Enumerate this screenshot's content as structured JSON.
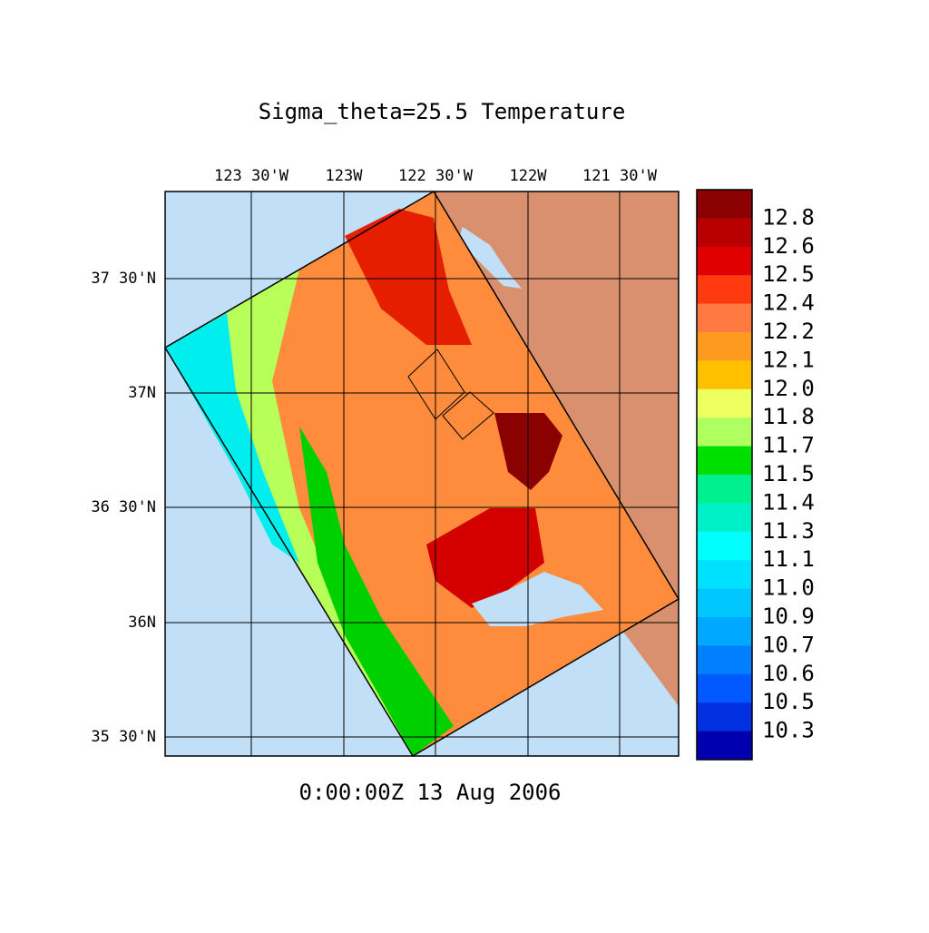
{
  "title": "Sigma_theta=25.5 Temperature",
  "map": {
    "lon_labels": [
      "123 30'W",
      "123W",
      "122 30'W",
      "122W",
      "121 30'W"
    ],
    "lat_labels": [
      "37 30'N",
      "37N",
      "36 30'N",
      "36N",
      "35 30'N"
    ]
  },
  "colorbar": {
    "labels": [
      "12.8",
      "12.6",
      "12.5",
      "12.4",
      "12.2",
      "12.1",
      "12.0",
      "11.8",
      "11.7",
      "11.5",
      "11.4",
      "11.3",
      "11.1",
      "11.0",
      "10.9",
      "10.7",
      "10.6",
      "10.5",
      "10.3"
    ],
    "colors": [
      "#8b0000",
      "#b80000",
      "#e00000",
      "#ff3a10",
      "#ff7a40",
      "#ff9a20",
      "#ffc000",
      "#eeff60",
      "#b0ff60",
      "#00e000",
      "#00f090",
      "#00f0c8",
      "#00ffff",
      "#00e0ff",
      "#00c8ff",
      "#00a8ff",
      "#0080ff",
      "#0058ff",
      "#0030e0",
      "#0000b0"
    ]
  },
  "timestamp": "0:00:00Z  13 Aug 2006"
}
